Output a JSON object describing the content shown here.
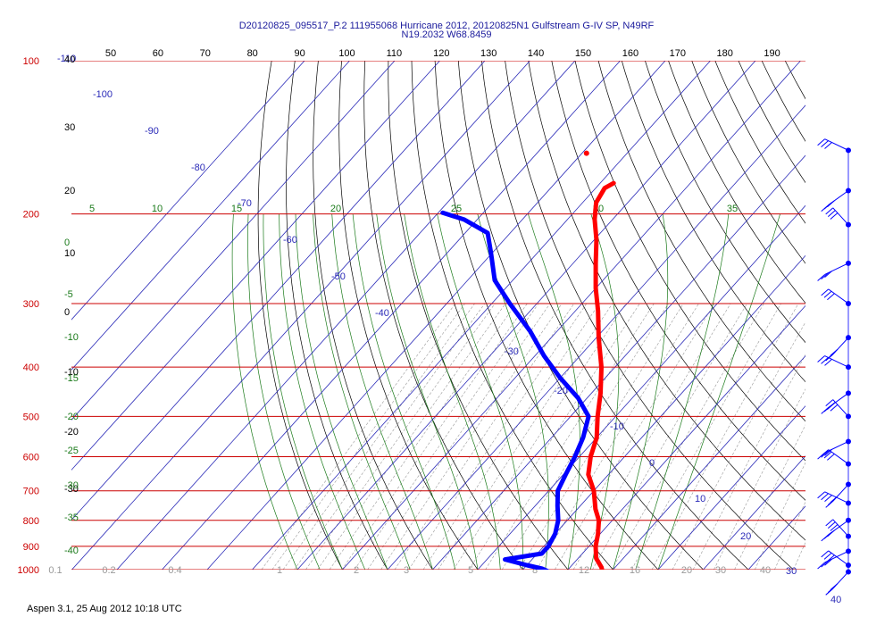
{
  "title": {
    "line1": "D20120825_095517_P.2 111955068 Hurricane 2012, 20120825N1 Gulfstream G-IV SP, N49RF",
    "line2": "N19.2032 W68.8459"
  },
  "footer": "Aspen 3.1, 25 Aug 2012  10:18 UTC",
  "colors": {
    "isobar": "#cc0000",
    "isotherm": "#2a2ab8",
    "dry_adiabat": "#000000",
    "moist_adiabat": "#1a7a1a",
    "mixing_ratio": "#999999",
    "temperature": "#ff0000",
    "dewpoint": "#0000ff",
    "wind_barb": "#0000ff"
  },
  "chart_data": {
    "type": "line",
    "subtype": "skew-T log-P diagram",
    "ylim": [
      1000,
      100
    ],
    "y_scale": "log",
    "xlim": [
      -40,
      40
    ],
    "pressure_labels": [
      "100",
      "200",
      "300",
      "400",
      "500",
      "600",
      "700",
      "800",
      "900",
      "1000"
    ],
    "theta_top_labels": [
      "50",
      "60",
      "70",
      "80",
      "90",
      "100",
      "110",
      "120",
      "130",
      "140",
      "150",
      "160",
      "170",
      "180",
      "190"
    ],
    "isotherm_labels": [
      "-110",
      "-100",
      "-90",
      "-80",
      "-70",
      "-60",
      "-50",
      "-40",
      "-30",
      "-20",
      "-10",
      "0",
      "10",
      "20",
      "30",
      "40"
    ],
    "mixing_ratio_labels": [
      "0.1",
      "0.2",
      "0.4",
      "1",
      "2",
      "3",
      "5",
      "8",
      "12",
      "16",
      "20",
      "30",
      "40"
    ],
    "theta_e_labels": [
      "5",
      "10",
      "15",
      "20",
      "25",
      "30",
      "35"
    ],
    "left_scale_labels": [
      "40",
      "30",
      "20",
      "10",
      "0",
      "-10",
      "-20",
      "-30",
      "0",
      "-5",
      "-10",
      "-15",
      "-20",
      "-25",
      "-30",
      "-35",
      "-40"
    ],
    "series": [
      {
        "key": "temperature",
        "points": [
          {
            "p": 174,
            "t": -47
          },
          {
            "p": 178,
            "t": -48
          },
          {
            "p": 190,
            "t": -47
          },
          {
            "p": 205,
            "t": -44
          },
          {
            "p": 225,
            "t": -39.5
          },
          {
            "p": 250,
            "t": -35
          },
          {
            "p": 280,
            "t": -30
          },
          {
            "p": 310,
            "t": -25
          },
          {
            "p": 350,
            "t": -19.5
          },
          {
            "p": 400,
            "t": -13
          },
          {
            "p": 450,
            "t": -8
          },
          {
            "p": 500,
            "t": -4
          },
          {
            "p": 550,
            "t": 0
          },
          {
            "p": 600,
            "t": 2.5
          },
          {
            "p": 650,
            "t": 5.5
          },
          {
            "p": 700,
            "t": 10
          },
          {
            "p": 760,
            "t": 14
          },
          {
            "p": 800,
            "t": 17
          },
          {
            "p": 850,
            "t": 19.5
          },
          {
            "p": 900,
            "t": 21.5
          },
          {
            "p": 950,
            "t": 24
          },
          {
            "p": 990,
            "t": 27
          },
          {
            "p": 1008,
            "t": 28
          }
        ]
      },
      {
        "key": "dewpoint",
        "points": [
          {
            "p": 199,
            "t": -79
          },
          {
            "p": 205,
            "t": -73
          },
          {
            "p": 218,
            "t": -65
          },
          {
            "p": 240,
            "t": -60
          },
          {
            "p": 270,
            "t": -54
          },
          {
            "p": 300,
            "t": -46
          },
          {
            "p": 340,
            "t": -36
          },
          {
            "p": 380,
            "t": -28
          },
          {
            "p": 420,
            "t": -20
          },
          {
            "p": 460,
            "t": -12
          },
          {
            "p": 500,
            "t": -6
          },
          {
            "p": 550,
            "t": -3
          },
          {
            "p": 600,
            "t": -1
          },
          {
            "p": 650,
            "t": 0.5
          },
          {
            "p": 700,
            "t": 2
          },
          {
            "p": 750,
            "t": 5
          },
          {
            "p": 800,
            "t": 8
          },
          {
            "p": 850,
            "t": 10
          },
          {
            "p": 900,
            "t": 11
          },
          {
            "p": 930,
            "t": 11
          },
          {
            "p": 955,
            "t": 4
          },
          {
            "p": 980,
            "t": 10
          },
          {
            "p": 995,
            "t": 14
          },
          {
            "p": 1008,
            "t": 16
          }
        ]
      }
    ],
    "isolated_temperature_point": {
      "p": 152,
      "t": -59
    },
    "wind_barbs_pressures": [
      150,
      180,
      210,
      250,
      300,
      350,
      400,
      450,
      500,
      560,
      620,
      680,
      740,
      800,
      860,
      920,
      980,
      1010
    ]
  }
}
